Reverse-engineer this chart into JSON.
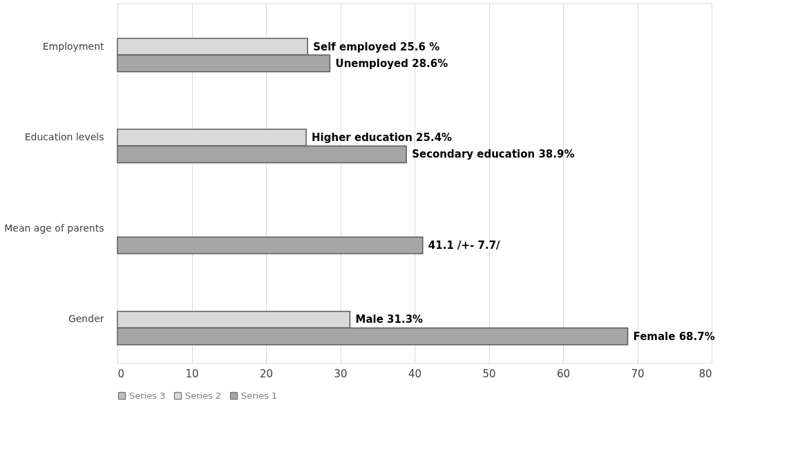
{
  "chart_data": {
    "type": "bar",
    "orientation": "horizontal",
    "categories": [
      "Employment",
      "Education levels",
      "Mean age of parents",
      "Gender"
    ],
    "series": [
      {
        "name": "Series 3",
        "color": "#bfbfbf",
        "values": [
          null,
          null,
          null,
          null
        ]
      },
      {
        "name": "Series 2",
        "color": "#d9d9d9",
        "values": [
          25.6,
          25.4,
          null,
          31.3
        ],
        "value_labels": [
          "Self employed 25.6 %",
          "Higher education 25.4%",
          null,
          "Male 31.3%"
        ]
      },
      {
        "name": "Series 1",
        "color": "#a6a6a6",
        "values": [
          28.6,
          38.9,
          41.1,
          68.7
        ],
        "value_labels": [
          "Unemployed 28.6%",
          "Secondary education 38.9%",
          "41.1 /+- 7.7/",
          "Female 68.7%"
        ]
      }
    ],
    "xlim": [
      0,
      80
    ],
    "xticks": [
      0,
      10,
      20,
      30,
      40,
      50,
      60,
      70,
      80
    ],
    "grid": "x",
    "legend": "bottom"
  }
}
